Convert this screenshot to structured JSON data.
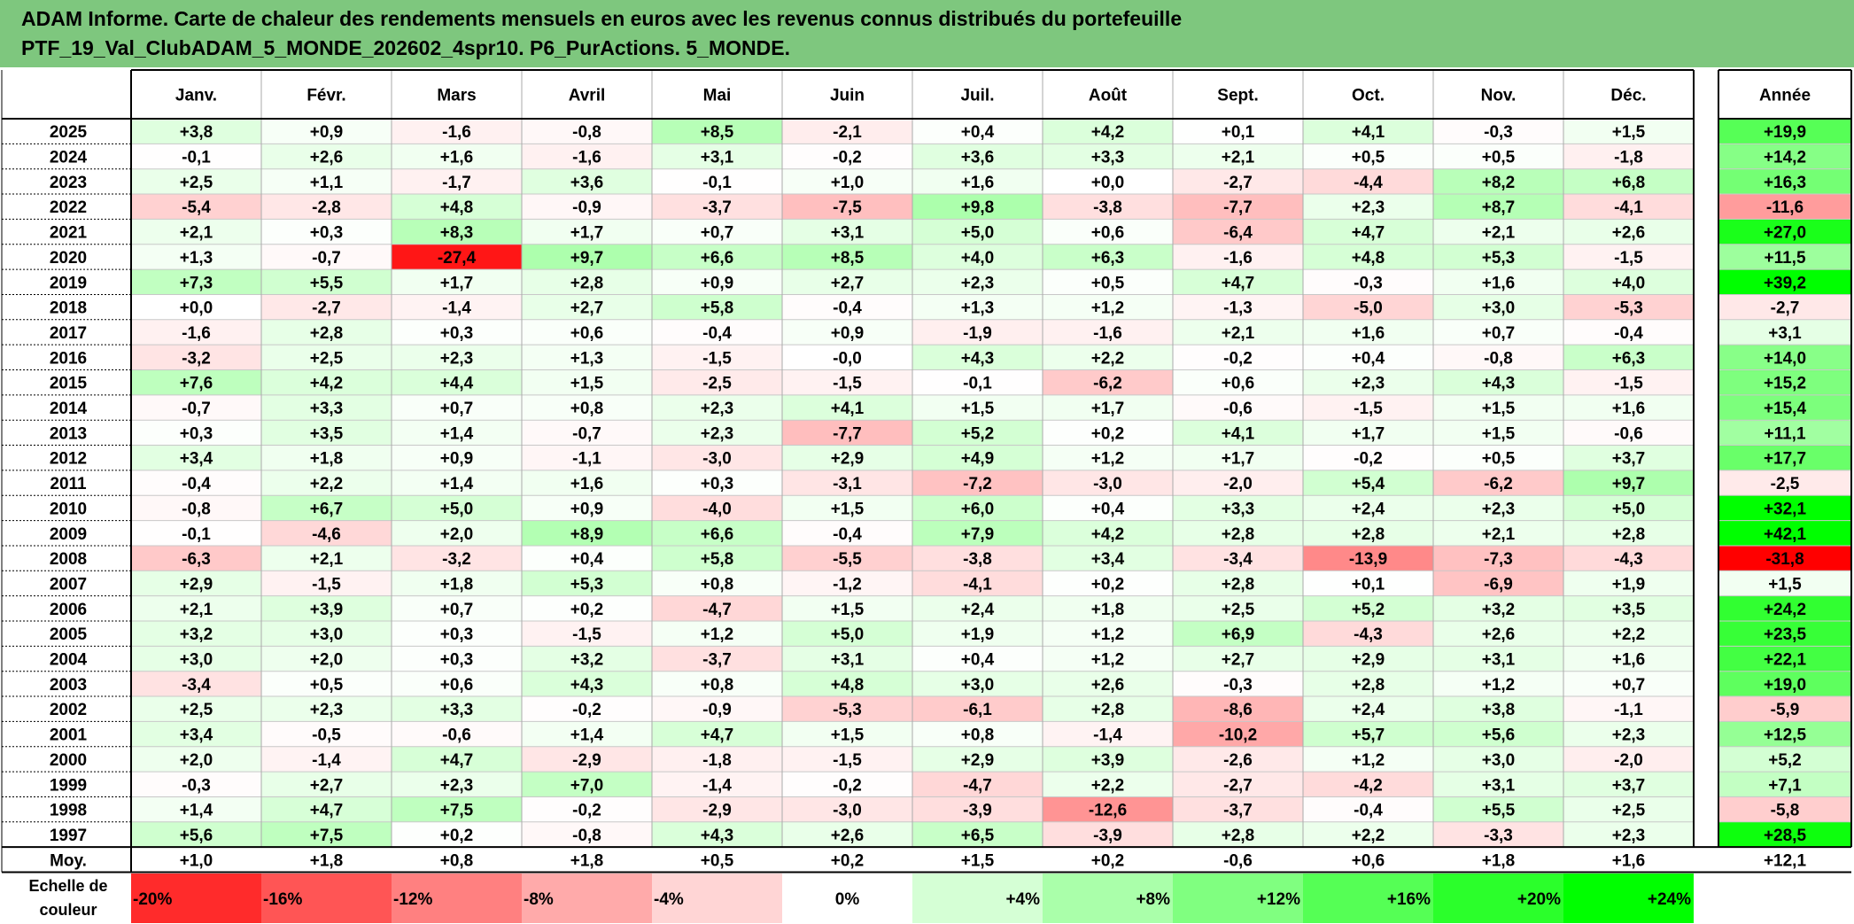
{
  "title": {
    "line1": "ADAM Informe. Carte de chaleur des rendements mensuels en euros avec les revenus connus distribués du portefeuille",
    "line2": "PTF_19_Val_ClubADAM_5_MONDE_202602_4spr10. P6_PurActions. 5_MONDE."
  },
  "colors": {
    "title_bg": "#7ec77e",
    "max_red": "#ff0000",
    "max_green": "#00ff00",
    "neutral": "#ffffff"
  },
  "chart_data": {
    "type": "heatmap",
    "months": [
      "Janv.",
      "Févr.",
      "Mars",
      "Avril",
      "Mai",
      "Juin",
      "Juil.",
      "Août",
      "Sept.",
      "Oct.",
      "Nov.",
      "Déc."
    ],
    "annual_header": "Année",
    "rows": [
      {
        "year": "2025",
        "values": [
          "+3,8",
          "+0,9",
          "-1,6",
          "-0,8",
          "+8,5",
          "-2,1",
          "+0,4",
          "+4,2",
          "+0,1",
          "+4,1",
          "-0,3",
          "+1,5"
        ],
        "annual": "+19,9"
      },
      {
        "year": "2024",
        "values": [
          "-0,1",
          "+2,6",
          "+1,6",
          "-1,6",
          "+3,1",
          "-0,2",
          "+3,6",
          "+3,3",
          "+2,1",
          "+0,5",
          "+0,5",
          "-1,8"
        ],
        "annual": "+14,2"
      },
      {
        "year": "2023",
        "values": [
          "+2,5",
          "+1,1",
          "-1,7",
          "+3,6",
          "-0,1",
          "+1,0",
          "+1,6",
          "+0,0",
          "-2,7",
          "-4,4",
          "+8,2",
          "+6,8"
        ],
        "annual": "+16,3"
      },
      {
        "year": "2022",
        "values": [
          "-5,4",
          "-2,8",
          "+4,8",
          "-0,9",
          "-3,7",
          "-7,5",
          "+9,8",
          "-3,8",
          "-7,7",
          "+2,3",
          "+8,7",
          "-4,1"
        ],
        "annual": "-11,6"
      },
      {
        "year": "2021",
        "values": [
          "+2,1",
          "+0,3",
          "+8,3",
          "+1,7",
          "+0,7",
          "+3,1",
          "+5,0",
          "+0,6",
          "-6,4",
          "+4,7",
          "+2,1",
          "+2,6"
        ],
        "annual": "+27,0"
      },
      {
        "year": "2020",
        "values": [
          "+1,3",
          "-0,7",
          "-27,4",
          "+9,7",
          "+6,6",
          "+8,5",
          "+4,0",
          "+6,3",
          "-1,6",
          "+4,8",
          "+5,3",
          "-1,5"
        ],
        "annual": "+11,5"
      },
      {
        "year": "2019",
        "values": [
          "+7,3",
          "+5,5",
          "+1,7",
          "+2,8",
          "+0,9",
          "+2,7",
          "+2,3",
          "+0,5",
          "+4,7",
          "-0,3",
          "+1,6",
          "+4,0"
        ],
        "annual": "+39,2"
      },
      {
        "year": "2018",
        "values": [
          "+0,0",
          "-2,7",
          "-1,4",
          "+2,7",
          "+5,8",
          "-0,4",
          "+1,3",
          "+1,2",
          "-1,3",
          "-5,0",
          "+3,0",
          "-5,3"
        ],
        "annual": "-2,7"
      },
      {
        "year": "2017",
        "values": [
          "-1,6",
          "+2,8",
          "+0,3",
          "+0,6",
          "-0,4",
          "+0,9",
          "-1,9",
          "-1,6",
          "+2,1",
          "+1,6",
          "+0,7",
          "-0,4"
        ],
        "annual": "+3,1"
      },
      {
        "year": "2016",
        "values": [
          "-3,2",
          "+2,5",
          "+2,3",
          "+1,3",
          "-1,5",
          "-0,0",
          "+4,3",
          "+2,2",
          "-0,2",
          "+0,4",
          "-0,8",
          "+6,3"
        ],
        "annual": "+14,0"
      },
      {
        "year": "2015",
        "values": [
          "+7,6",
          "+4,2",
          "+4,4",
          "+1,5",
          "-2,5",
          "-1,5",
          "-0,1",
          "-6,2",
          "+0,6",
          "+2,3",
          "+4,3",
          "-1,5"
        ],
        "annual": "+15,2"
      },
      {
        "year": "2014",
        "values": [
          "-0,7",
          "+3,3",
          "+0,7",
          "+0,8",
          "+2,3",
          "+4,1",
          "+1,5",
          "+1,7",
          "-0,6",
          "-1,5",
          "+1,5",
          "+1,6"
        ],
        "annual": "+15,4"
      },
      {
        "year": "2013",
        "values": [
          "+0,3",
          "+3,5",
          "+1,4",
          "-0,7",
          "+2,3",
          "-7,7",
          "+5,2",
          "+0,2",
          "+4,1",
          "+1,7",
          "+1,5",
          "-0,6"
        ],
        "annual": "+11,1"
      },
      {
        "year": "2012",
        "values": [
          "+3,4",
          "+1,8",
          "+0,9",
          "-1,1",
          "-3,0",
          "+2,9",
          "+4,9",
          "+1,2",
          "+1,7",
          "-0,2",
          "+0,5",
          "+3,7"
        ],
        "annual": "+17,7"
      },
      {
        "year": "2011",
        "values": [
          "-0,4",
          "+2,2",
          "+1,4",
          "+1,6",
          "+0,3",
          "-3,1",
          "-7,2",
          "-3,0",
          "-2,0",
          "+5,4",
          "-6,2",
          "+9,7"
        ],
        "annual": "-2,5"
      },
      {
        "year": "2010",
        "values": [
          "-0,8",
          "+6,7",
          "+5,0",
          "+0,9",
          "-4,0",
          "+1,5",
          "+6,0",
          "+0,4",
          "+3,3",
          "+2,4",
          "+2,3",
          "+5,0"
        ],
        "annual": "+32,1"
      },
      {
        "year": "2009",
        "values": [
          "-0,1",
          "-4,6",
          "+2,0",
          "+8,9",
          "+6,6",
          "-0,4",
          "+7,9",
          "+4,2",
          "+2,8",
          "+2,8",
          "+2,1",
          "+2,8"
        ],
        "annual": "+42,1"
      },
      {
        "year": "2008",
        "values": [
          "-6,3",
          "+2,1",
          "-3,2",
          "+0,4",
          "+5,8",
          "-5,5",
          "-3,8",
          "+3,4",
          "-3,4",
          "-13,9",
          "-7,3",
          "-4,3"
        ],
        "annual": "-31,8"
      },
      {
        "year": "2007",
        "values": [
          "+2,9",
          "-1,5",
          "+1,8",
          "+5,3",
          "+0,8",
          "-1,2",
          "-4,1",
          "+0,2",
          "+2,8",
          "+0,1",
          "-6,9",
          "+1,9"
        ],
        "annual": "+1,5"
      },
      {
        "year": "2006",
        "values": [
          "+2,1",
          "+3,9",
          "+0,7",
          "+0,2",
          "-4,7",
          "+1,5",
          "+2,4",
          "+1,8",
          "+2,5",
          "+5,2",
          "+3,2",
          "+3,5"
        ],
        "annual": "+24,2"
      },
      {
        "year": "2005",
        "values": [
          "+3,2",
          "+3,0",
          "+0,3",
          "-1,5",
          "+1,2",
          "+5,0",
          "+1,9",
          "+1,2",
          "+6,9",
          "-4,3",
          "+2,6",
          "+2,2"
        ],
        "annual": "+23,5"
      },
      {
        "year": "2004",
        "values": [
          "+3,0",
          "+2,0",
          "+0,3",
          "+3,2",
          "-3,7",
          "+3,1",
          "+0,4",
          "+1,2",
          "+2,7",
          "+2,9",
          "+3,1",
          "+1,6"
        ],
        "annual": "+22,1"
      },
      {
        "year": "2003",
        "values": [
          "-3,4",
          "+0,5",
          "+0,6",
          "+4,3",
          "+0,8",
          "+4,8",
          "+3,0",
          "+2,6",
          "-0,3",
          "+2,8",
          "+1,2",
          "+0,7"
        ],
        "annual": "+19,0"
      },
      {
        "year": "2002",
        "values": [
          "+2,5",
          "+2,3",
          "+3,3",
          "-0,2",
          "-0,9",
          "-5,3",
          "-6,1",
          "+2,8",
          "-8,6",
          "+2,4",
          "+3,8",
          "-1,1"
        ],
        "annual": "-5,9"
      },
      {
        "year": "2001",
        "values": [
          "+3,4",
          "-0,5",
          "-0,6",
          "+1,4",
          "+4,7",
          "+1,5",
          "+0,8",
          "-1,4",
          "-10,2",
          "+5,7",
          "+5,6",
          "+2,3"
        ],
        "annual": "+12,5"
      },
      {
        "year": "2000",
        "values": [
          "+2,0",
          "-1,4",
          "+4,7",
          "-2,9",
          "-1,8",
          "-1,5",
          "+2,9",
          "+3,9",
          "-2,6",
          "+1,2",
          "+3,0",
          "-2,0"
        ],
        "annual": "+5,2"
      },
      {
        "year": "1999",
        "values": [
          "-0,3",
          "+2,7",
          "+2,3",
          "+7,0",
          "-1,4",
          "-0,2",
          "-4,7",
          "+2,2",
          "-2,7",
          "-4,2",
          "+3,1",
          "+3,7"
        ],
        "annual": "+7,1"
      },
      {
        "year": "1998",
        "values": [
          "+1,4",
          "+4,7",
          "+7,5",
          "-0,2",
          "-2,9",
          "-3,0",
          "-3,9",
          "-12,6",
          "-3,7",
          "-0,4",
          "+5,5",
          "+2,5"
        ],
        "annual": "-5,8"
      },
      {
        "year": "1997",
        "values": [
          "+5,6",
          "+7,5",
          "+0,2",
          "-0,8",
          "+4,3",
          "+2,6",
          "+6,5",
          "-3,9",
          "+2,8",
          "+2,2",
          "-3,3",
          "+2,3"
        ],
        "annual": "+28,5"
      }
    ],
    "average": {
      "label": "Moy.",
      "values": [
        "+1,0",
        "+1,8",
        "+0,8",
        "+1,8",
        "+0,5",
        "+0,2",
        "+1,5",
        "+0,2",
        "-0,6",
        "+0,6",
        "+1,8",
        "+1,6"
      ],
      "annual": "+12,1"
    },
    "scale": {
      "label_line1": "Echelle de",
      "label_line2": "couleur",
      "items": [
        {
          "label": "-20%",
          "value": -20
        },
        {
          "label": "-16%",
          "value": -16
        },
        {
          "label": "-12%",
          "value": -12
        },
        {
          "label": "-8%",
          "value": -8
        },
        {
          "label": "-4%",
          "value": -4
        },
        {
          "label": "0%",
          "value": 0
        },
        {
          "label": "+4%",
          "value": 4
        },
        {
          "label": "+8%",
          "value": 8
        },
        {
          "label": "+12%",
          "value": 12
        },
        {
          "label": "+16%",
          "value": 16
        },
        {
          "label": "+20%",
          "value": 20
        },
        {
          "label": "+24%",
          "value": 24
        }
      ]
    }
  }
}
